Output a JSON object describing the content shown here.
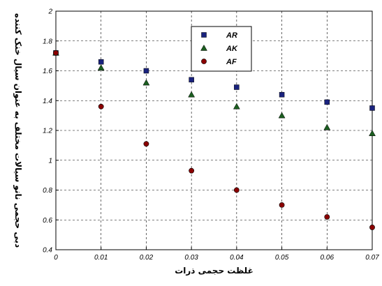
{
  "chart_data": {
    "type": "scatter",
    "xlabel": "غلظت حجمی ذرات",
    "ylabel": "دبی حجمی نانو سیالات مختلف به عنوان سیال خنک کننده",
    "xlim": [
      0,
      0.07
    ],
    "ylim": [
      0.4,
      2
    ],
    "x_ticks": [
      "0",
      "0.01",
      "0.02",
      "0.03",
      "0.04",
      "0.05",
      "0.06",
      "0.07"
    ],
    "y_ticks": [
      "0.4",
      "0.6",
      "0.8",
      "1",
      "1.2",
      "1.4",
      "1.6",
      "1.8",
      "2"
    ],
    "grid": true,
    "grid_style": "dashed",
    "legend_position": "top-center",
    "series": [
      {
        "name": "AR",
        "marker": "square",
        "color": "#1a237e",
        "x": [
          0,
          0.01,
          0.02,
          0.03,
          0.04,
          0.05,
          0.06,
          0.07
        ],
        "y": [
          1.72,
          1.66,
          1.6,
          1.54,
          1.49,
          1.44,
          1.39,
          1.35
        ]
      },
      {
        "name": "AK",
        "marker": "triangle",
        "color": "#1b5e20",
        "x": [
          0,
          0.01,
          0.02,
          0.03,
          0.04,
          0.05,
          0.06,
          0.07
        ],
        "y": [
          1.72,
          1.62,
          1.52,
          1.44,
          1.36,
          1.3,
          1.22,
          1.18
        ]
      },
      {
        "name": "AF",
        "marker": "circle",
        "color": "#8b0000",
        "x": [
          0,
          0.01,
          0.02,
          0.03,
          0.04,
          0.05,
          0.06,
          0.07
        ],
        "y": [
          1.72,
          1.36,
          1.11,
          0.93,
          0.8,
          0.7,
          0.62,
          0.55
        ]
      }
    ]
  }
}
